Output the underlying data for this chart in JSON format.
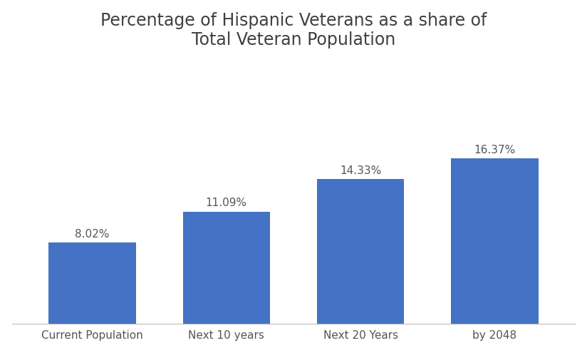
{
  "title": "Percentage of Hispanic Veterans as a share of\nTotal Veteran Population",
  "categories": [
    "Current Population",
    "Next 10 years",
    "Next 20 Years",
    "by 2048"
  ],
  "values": [
    8.02,
    11.09,
    14.33,
    16.37
  ],
  "labels": [
    "8.02%",
    "11.09%",
    "14.33%",
    "16.37%"
  ],
  "bar_color": "#4472C4",
  "background_color": "#ffffff",
  "title_fontsize": 17,
  "label_fontsize": 11,
  "tick_fontsize": 11,
  "ylim": [
    0,
    26
  ],
  "grid_color": "#d0d0d0",
  "title_color": "#404040",
  "tick_label_color": "#555555",
  "value_label_color": "#555555",
  "bar_width": 0.65
}
